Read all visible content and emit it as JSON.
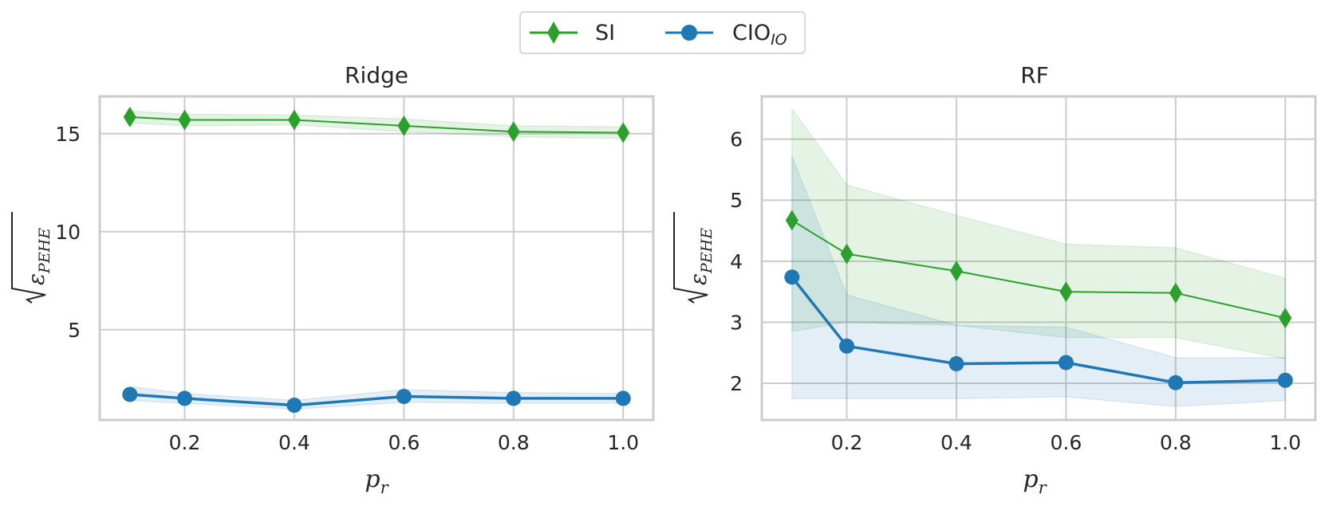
{
  "legend": {
    "items": [
      {
        "label": "SI",
        "sub": "",
        "color": "#2ca02c",
        "marker": "diamond"
      },
      {
        "label": "CIO",
        "sub": "IO",
        "color": "#1f77b4",
        "marker": "circle"
      }
    ]
  },
  "chart_data": [
    {
      "type": "line",
      "title": "Ridge",
      "xlabel": "p",
      "xlabel_sub": "r",
      "ylabel": "√ε_PEHE",
      "ylabel_base": "ε",
      "ylabel_sub": "PEHE",
      "x": [
        0.1,
        0.2,
        0.4,
        0.6,
        0.8,
        1.0
      ],
      "xticks": [
        "0.2",
        "0.4",
        "0.6",
        "0.8",
        "1.0"
      ],
      "xtick_values": [
        0.2,
        0.4,
        0.6,
        0.8,
        1.0
      ],
      "yticks": [
        "5",
        "10",
        "15"
      ],
      "ytick_values": [
        5,
        10,
        15
      ],
      "xlim": [
        0.045,
        1.055
      ],
      "ylim": [
        0.4,
        16.9
      ],
      "grid": true,
      "series": [
        {
          "name": "SI",
          "color": "#2ca02c",
          "marker": "diamond",
          "values": [
            15.85,
            15.7,
            15.7,
            15.4,
            15.1,
            15.05
          ],
          "lower": [
            15.55,
            15.4,
            15.45,
            15.1,
            14.85,
            14.75
          ],
          "upper": [
            16.15,
            16.0,
            15.95,
            15.75,
            15.4,
            15.35
          ]
        },
        {
          "name": "CIO_IO",
          "color": "#1f77b4",
          "marker": "circle",
          "values": [
            1.7,
            1.5,
            1.15,
            1.6,
            1.5,
            1.5
          ],
          "lower": [
            1.4,
            1.25,
            0.95,
            1.3,
            1.25,
            1.25
          ],
          "upper": [
            2.1,
            1.75,
            1.4,
            1.95,
            1.8,
            1.75
          ]
        }
      ]
    },
    {
      "type": "line",
      "title": "RF",
      "xlabel": "p",
      "xlabel_sub": "r",
      "ylabel": "√ε_PEHE",
      "ylabel_base": "ε",
      "ylabel_sub": "PEHE",
      "x": [
        0.1,
        0.2,
        0.4,
        0.6,
        0.8,
        1.0
      ],
      "xticks": [
        "0.2",
        "0.4",
        "0.6",
        "0.8",
        "1.0"
      ],
      "xtick_values": [
        0.2,
        0.4,
        0.6,
        0.8,
        1.0
      ],
      "yticks": [
        "2",
        "3",
        "4",
        "5",
        "6"
      ],
      "ytick_values": [
        2,
        3,
        4,
        5,
        6
      ],
      "xlim": [
        0.045,
        1.055
      ],
      "ylim": [
        1.4,
        6.7
      ],
      "grid": true,
      "series": [
        {
          "name": "SI",
          "color": "#2ca02c",
          "marker": "diamond",
          "values": [
            4.67,
            4.12,
            3.84,
            3.5,
            3.48,
            3.07
          ],
          "lower": [
            2.85,
            3.0,
            2.95,
            2.75,
            2.75,
            2.4
          ],
          "upper": [
            6.5,
            5.25,
            4.75,
            4.28,
            4.22,
            3.72
          ]
        },
        {
          "name": "CIO_IO",
          "color": "#1f77b4",
          "marker": "circle",
          "values": [
            3.74,
            2.61,
            2.32,
            2.34,
            2.01,
            2.05
          ],
          "lower": [
            1.75,
            1.75,
            1.75,
            1.78,
            1.62,
            1.72
          ],
          "upper": [
            5.72,
            3.45,
            2.95,
            2.92,
            2.42,
            2.42
          ]
        }
      ]
    }
  ]
}
